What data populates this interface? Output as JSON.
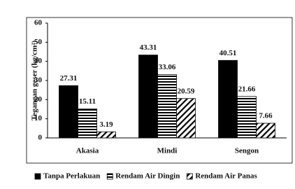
{
  "chart_data": {
    "type": "bar",
    "y_label": "Tegangan geser (kg/cm²)",
    "categories": [
      "Akasia",
      "Mindi",
      "Sengon"
    ],
    "series": [
      {
        "name": "Tanpa Perlakuan",
        "color": "#000000",
        "pattern": "solid",
        "values": [
          27.31,
          43.31,
          40.51
        ]
      },
      {
        "name": "Rendam Air Dingin",
        "color": "#000000",
        "pattern": "horizontal",
        "values": [
          15.11,
          33.06,
          21.66
        ]
      },
      {
        "name": "Rendam Air Panas",
        "color": "#000000",
        "pattern": "diagonal",
        "values": [
          3.19,
          20.59,
          7.66
        ]
      }
    ],
    "ylim": [
      0,
      60
    ],
    "yticks": [
      0,
      10,
      20,
      30,
      40,
      50,
      60
    ],
    "grid": false,
    "legend": "bottom"
  }
}
